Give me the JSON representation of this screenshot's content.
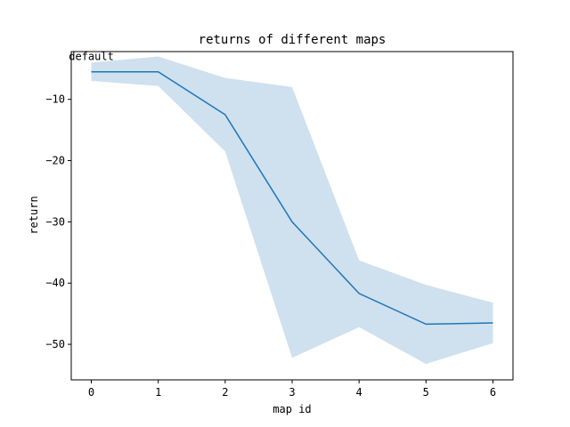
{
  "chart_data": {
    "type": "line",
    "title": "returns of different maps",
    "xlabel": "map id",
    "ylabel": "return",
    "x": [
      0,
      1,
      2,
      3,
      4,
      5,
      6
    ],
    "xticks": [
      "0",
      "1",
      "2",
      "3",
      "4",
      "5",
      "6"
    ],
    "yticks": [
      -10,
      -20,
      -30,
      -40,
      -50
    ],
    "ytick_labels": [
      "−10",
      "−20",
      "−30",
      "−40",
      "−50"
    ],
    "xlim": [
      -0.3,
      6.3
    ],
    "ylim": [
      -55.8,
      -2.2
    ],
    "grid": false,
    "series": [
      {
        "values": [
          -5.5,
          -5.5,
          -12.5,
          -30.0,
          -41.7,
          -46.7,
          -46.5
        ],
        "band_upper": [
          -4.0,
          -3.0,
          -6.5,
          -8.0,
          -36.3,
          -40.3,
          -43.2
        ],
        "band_lower": [
          -7.0,
          -7.8,
          -18.5,
          -52.2,
          -47.2,
          -53.2,
          -49.8
        ],
        "color": "#1f77b4",
        "band_color": "#cfe0ef"
      }
    ],
    "annotations": [
      {
        "text": "default",
        "x": 0,
        "y": -3.0
      }
    ]
  }
}
